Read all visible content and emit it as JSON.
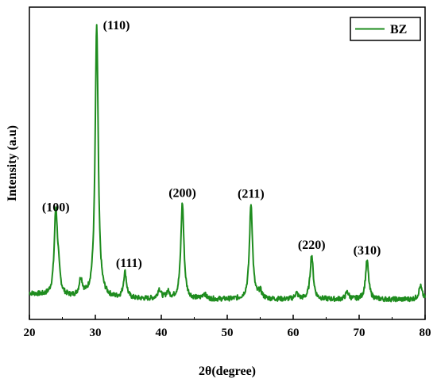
{
  "chart_data": {
    "type": "line",
    "xlabel": "2θ(degree)",
    "ylabel": "Intensity (a.u)",
    "xlim": [
      20,
      80
    ],
    "ylim": [
      0,
      100
    ],
    "y_ticks_shown": false,
    "x_ticks": [
      "20",
      "30",
      "40",
      "50",
      "60",
      "70",
      "80"
    ],
    "grid": false,
    "legend_position": "top-right",
    "series": [
      {
        "name": "BZ",
        "color": "#1e8c1e"
      }
    ],
    "peaks": [
      {
        "x": 24.0,
        "y": 30.2,
        "label": "(100)"
      },
      {
        "x": 30.2,
        "y": 100.0,
        "label": "(110)"
      },
      {
        "x": 34.5,
        "y": 9.6,
        "label": "(111)"
      },
      {
        "x": 43.2,
        "y": 35.5,
        "label": "(200)"
      },
      {
        "x": 53.6,
        "y": 35.2,
        "label": "(211)"
      },
      {
        "x": 62.8,
        "y": 16.4,
        "label": "(220)"
      },
      {
        "x": 71.2,
        "y": 14.3,
        "label": "(310)"
      }
    ],
    "minor_peaks": [
      {
        "x": 24.4,
        "y": 7.2
      },
      {
        "x": 27.8,
        "y": 6.3
      },
      {
        "x": 39.7,
        "y": 3.5
      },
      {
        "x": 41.0,
        "y": 2.4
      },
      {
        "x": 46.5,
        "y": 2.0
      },
      {
        "x": 55.0,
        "y": 2.6
      },
      {
        "x": 60.5,
        "y": 2.2
      },
      {
        "x": 68.2,
        "y": 2.6
      },
      {
        "x": 79.3,
        "y": 4.9
      }
    ]
  }
}
